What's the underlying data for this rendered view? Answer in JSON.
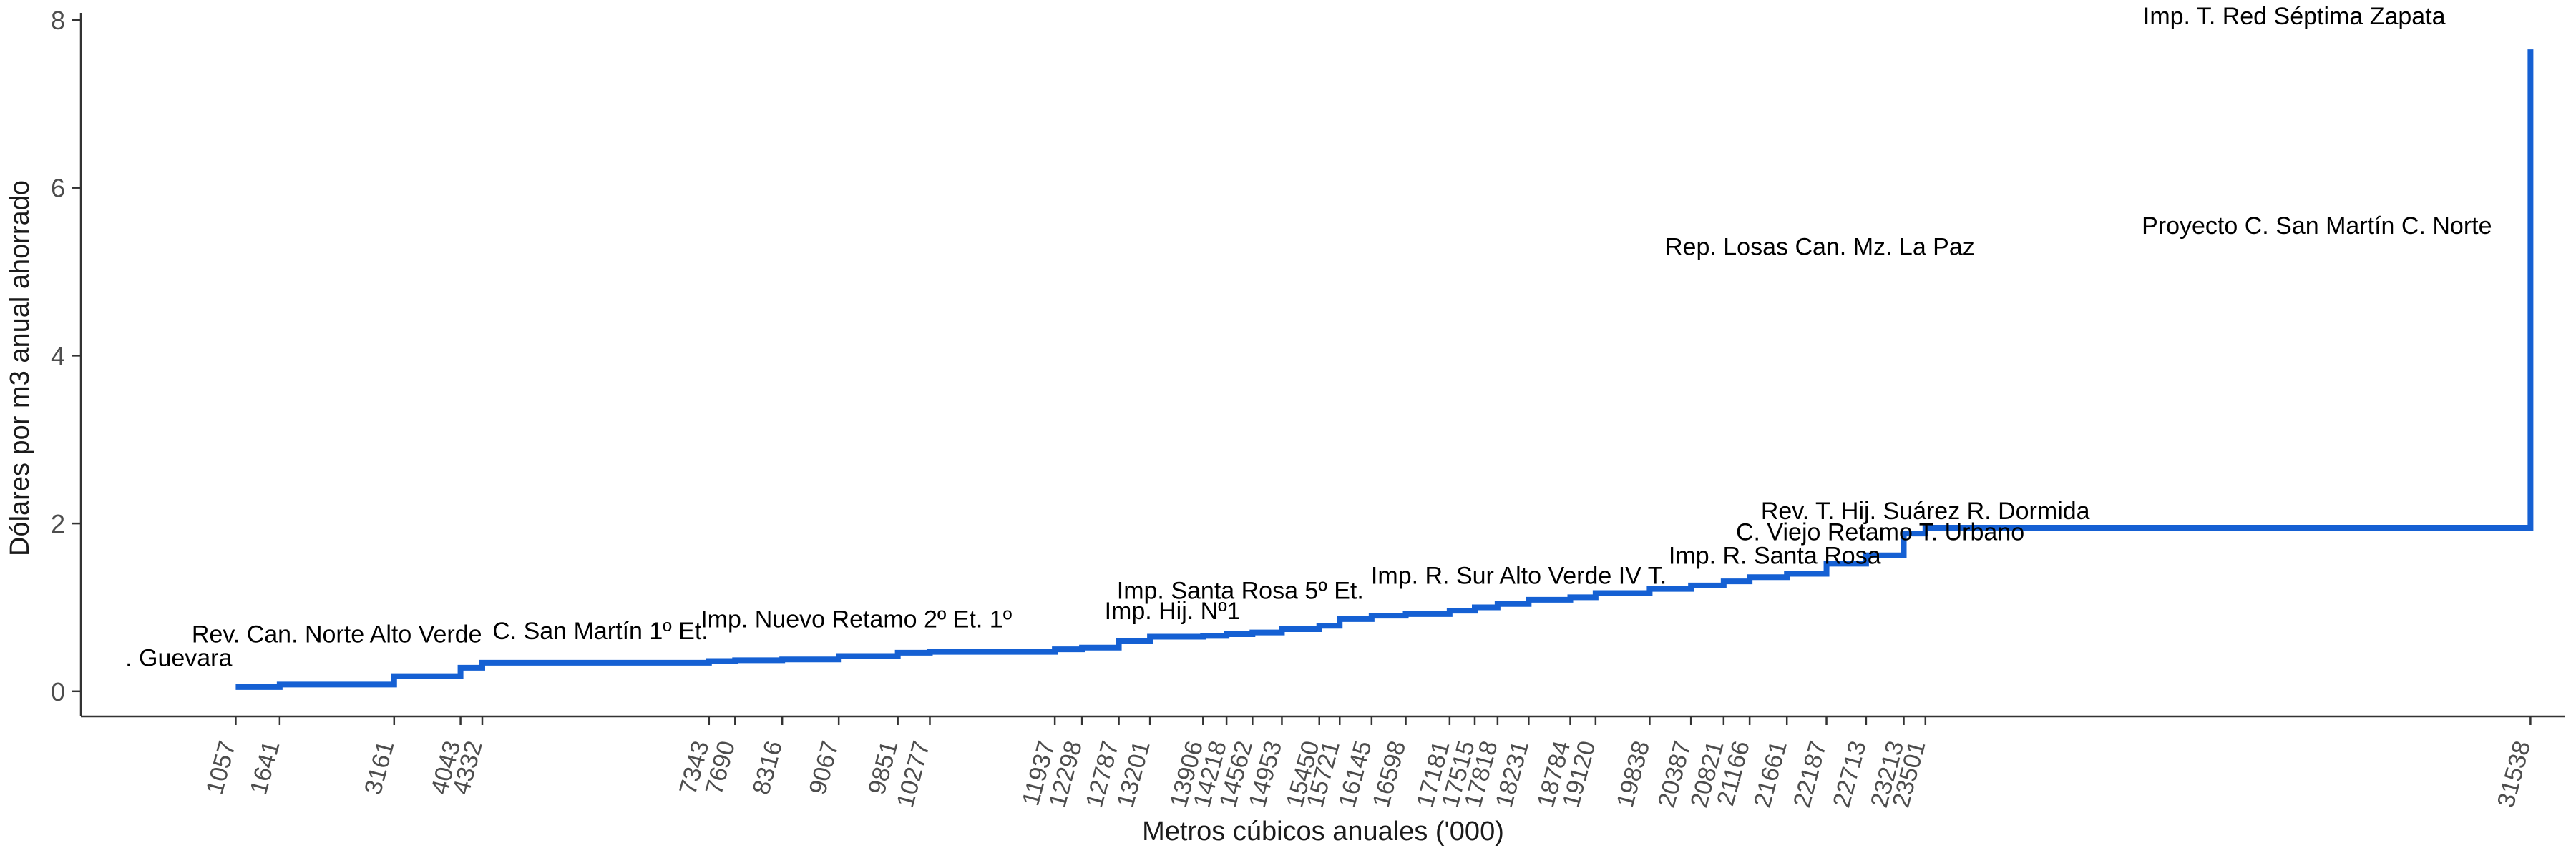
{
  "chart_data": {
    "type": "line",
    "style": "step",
    "title": "",
    "xlabel": "Metros cúbicos anuales ('000)",
    "ylabel": "Dólares por m3 anual ahorrado",
    "xlim": [
      -1000,
      32000
    ],
    "ylim": [
      -0.3,
      8
    ],
    "yticks": [
      0,
      2,
      4,
      6,
      8
    ],
    "grid": false,
    "line_color": "#1560d3",
    "x_ticks": [
      1057,
      1641,
      3161,
      4043,
      4332,
      7343,
      7690,
      8316,
      9067,
      9851,
      10277,
      11937,
      12298,
      12787,
      13201,
      13906,
      14218,
      14562,
      14953,
      15450,
      15721,
      16145,
      16598,
      17181,
      17515,
      17818,
      18231,
      18784,
      19120,
      19838,
      20387,
      20821,
      21166,
      21661,
      22187,
      22713,
      23213,
      23501,
      31538
    ],
    "series": [
      {
        "x": [
          1057,
          1641,
          3161,
          4043,
          4332,
          7343,
          7690,
          8316,
          9067,
          9851,
          10277,
          11937,
          12298,
          12787,
          13201,
          13906,
          14218,
          14562,
          14953,
          15450,
          15721,
          16145,
          16598,
          17181,
          17515,
          17818,
          18231,
          18784,
          19120,
          19838,
          20387,
          20821,
          21166,
          21661,
          22187,
          22713,
          23213,
          23501,
          31538
        ],
        "y": [
          0.05,
          0.08,
          0.18,
          0.28,
          0.34,
          0.36,
          0.37,
          0.38,
          0.42,
          0.46,
          0.47,
          0.5,
          0.52,
          0.6,
          0.65,
          0.66,
          0.68,
          0.7,
          0.74,
          0.78,
          0.86,
          0.9,
          0.92,
          0.96,
          1.0,
          1.04,
          1.09,
          1.12,
          1.17,
          1.22,
          1.26,
          1.31,
          1.36,
          1.4,
          1.52,
          1.62,
          1.88,
          1.95,
          4.95
        ],
        "end": {
          "x": 31538,
          "y": 7.65
        }
      }
    ],
    "annotations": [
      {
        "text": "Rev. Can. Norte Alto Verde",
        "x": 2400,
        "y": 0.58
      },
      {
        "text": ". Guevara",
        "x": 300,
        "y": 0.3
      },
      {
        "text": "C. San Martín 1º Et.",
        "x": 5900,
        "y": 0.62
      },
      {
        "text": "Imp. Nuevo Retamo 2º Et. 1º",
        "x": 9300,
        "y": 0.76
      },
      {
        "text": "Imp. Santa Rosa 5º Et.",
        "x": 14400,
        "y": 1.1
      },
      {
        "text": "Imp. Hij. Nº1",
        "x": 13500,
        "y": 0.86
      },
      {
        "text": "Imp. R. Sur Alto Verde IV T.",
        "x": 18100,
        "y": 1.28
      },
      {
        "text": "Imp. R. Santa Rosa",
        "x": 21500,
        "y": 1.52
      },
      {
        "text": "C. Viejo Retamo T. Urbano",
        "x": 22900,
        "y": 1.8
      },
      {
        "text": "Rev. T. Hij. Suárez R. Dormida",
        "x": 23500,
        "y": 2.05
      },
      {
        "text": "Rep. Losas Can. Mz. La Paz",
        "x": 22100,
        "y": 5.2
      },
      {
        "text": "Proyecto C. San Martín C. Norte",
        "x": 28700,
        "y": 5.45
      },
      {
        "text": "Imp. T. Red Séptima Zapata",
        "x": 28400,
        "y": 7.95
      }
    ]
  }
}
